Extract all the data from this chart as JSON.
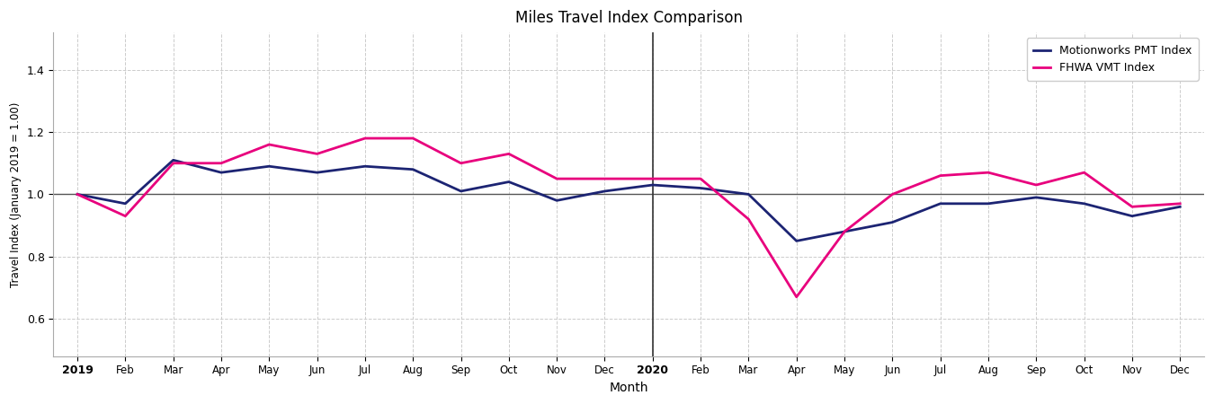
{
  "title": "Miles Travel Index Comparison",
  "xlabel": "Month",
  "ylabel": "Travel Index (January 2019 = 1.00)",
  "ylim": [
    0.48,
    1.52
  ],
  "yticks": [
    0.6,
    0.8,
    1.0,
    1.2,
    1.4
  ],
  "background_color": "#ffffff",
  "grid_color": "#cccccc",
  "pmt_color": "#1c2473",
  "vmt_color": "#e8007d",
  "pmt_label": "Motionworks PMT Index",
  "vmt_label": "FHWA VMT Index",
  "pmt_2019": [
    1.0,
    0.97,
    1.11,
    1.07,
    1.09,
    1.07,
    1.09,
    1.08,
    1.01,
    1.04,
    0.98,
    1.01
  ],
  "pmt_2020": [
    1.03,
    1.02,
    1.0,
    0.85,
    0.88,
    0.91,
    0.97,
    0.97,
    0.99,
    0.97,
    0.93,
    0.96
  ],
  "vmt_2019": [
    1.0,
    0.93,
    1.1,
    1.1,
    1.16,
    1.13,
    1.18,
    1.18,
    1.1,
    1.13,
    1.05,
    1.05
  ],
  "vmt_2020": [
    1.05,
    1.05,
    0.92,
    0.67,
    0.88,
    1.0,
    1.06,
    1.07,
    1.03,
    1.07,
    0.96,
    0.97
  ],
  "line_width": 2.0,
  "hline_color": "#555555",
  "vline_color": "#333333",
  "tick_labels_2019": [
    "2019",
    "Feb",
    "Mar",
    "Apr",
    "May",
    "Jun",
    "Jul",
    "Aug",
    "Sep",
    "Oct",
    "Nov",
    "Dec"
  ],
  "tick_labels_2020": [
    "2020",
    "Feb",
    "Mar",
    "Apr",
    "May",
    "Jun",
    "Jul",
    "Aug",
    "Sep",
    "Oct",
    "Nov",
    "Dec"
  ]
}
